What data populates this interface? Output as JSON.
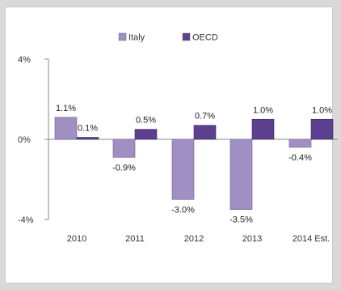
{
  "chart_data": {
    "type": "bar",
    "categories": [
      "2010",
      "2011",
      "2012",
      "2013",
      "2014 Est."
    ],
    "series": [
      {
        "name": "Italy",
        "color": "#a08fc2",
        "values": [
          1.1,
          -0.9,
          -3.0,
          -3.5,
          -0.4
        ],
        "labels": [
          "1.1%",
          "-0.9%",
          "-3.0%",
          "-3.5%",
          "-0.4%"
        ]
      },
      {
        "name": "OECD",
        "color": "#5c3f8e",
        "values": [
          0.1,
          0.5,
          0.7,
          1.0,
          1.0
        ],
        "labels": [
          "0.1%",
          "0.5%",
          "0.7%",
          "1.0%",
          "1.0%"
        ]
      }
    ],
    "yticks": [
      "4%",
      "0%",
      "-4%"
    ],
    "ytick_values": [
      4,
      0,
      -4
    ],
    "ylim": [
      -4,
      4
    ],
    "legend_position": "top",
    "grid": false
  }
}
